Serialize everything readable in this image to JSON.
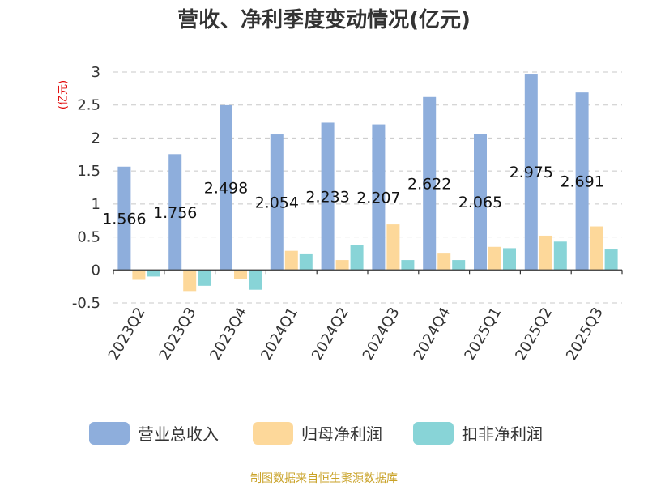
{
  "chart_data": {
    "type": "bar",
    "title": "营收、净利季度变动情况(亿元)",
    "unit_label": "(亿元)",
    "categories": [
      "2023Q2",
      "2023Q3",
      "2023Q4",
      "2024Q1",
      "2024Q2",
      "2024Q3",
      "2024Q4",
      "2025Q1",
      "2025Q2",
      "2025Q3"
    ],
    "series": [
      {
        "name": "营业总收入",
        "color": "#8eaedc",
        "values": [
          1.566,
          1.756,
          2.498,
          2.054,
          2.233,
          2.207,
          2.622,
          2.065,
          2.975,
          2.691
        ]
      },
      {
        "name": "归母净利润",
        "color": "#fdd89a",
        "values": [
          -0.15,
          -0.32,
          -0.14,
          0.29,
          0.15,
          0.69,
          0.26,
          0.35,
          0.52,
          0.66
        ]
      },
      {
        "name": "扣非净利润",
        "color": "#88d4d7",
        "values": [
          -0.1,
          -0.24,
          -0.3,
          0.25,
          0.38,
          0.15,
          0.15,
          0.33,
          0.43,
          0.31
        ]
      }
    ],
    "data_labels": [
      "1.566",
      "1.756",
      "2.498",
      "2.054",
      "2.233",
      "2.207",
      "2.622",
      "2.065",
      "2.975",
      "2.691"
    ],
    "yticks": [
      "3",
      "2.5",
      "2",
      "1.5",
      "1",
      "0.5",
      "0",
      "-0.5"
    ],
    "ylim": [
      -0.5,
      3
    ],
    "grid": true,
    "legend_position": "bottom"
  },
  "source_text": "制图数据来自恒生聚源数据库"
}
